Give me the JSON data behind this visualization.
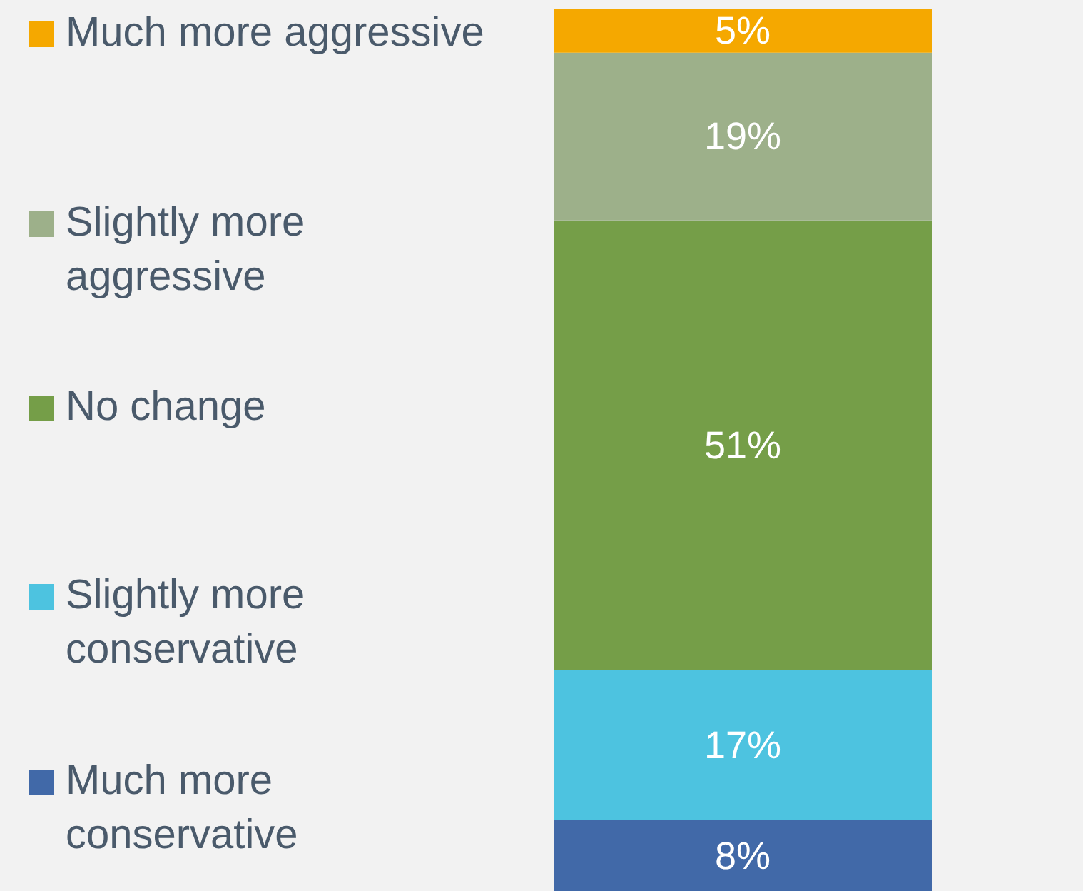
{
  "chart_data": {
    "type": "bar",
    "stacked": true,
    "categories": [
      null
    ],
    "ylim": [
      0,
      100
    ],
    "tick_labels": false,
    "legend": "left",
    "grid": false,
    "series": [
      {
        "name": "Much more conservative",
        "color": "#4169a8",
        "values": [
          8
        ],
        "value_labels": [
          "8%"
        ]
      },
      {
        "name": "Slightly more conservative",
        "color": "#4dc3e0",
        "values": [
          17
        ],
        "value_labels": [
          "17%"
        ]
      },
      {
        "name": "No change",
        "color": "#759e48",
        "values": [
          51
        ],
        "value_labels": [
          "51%"
        ]
      },
      {
        "name": "Slightly more aggressive",
        "color": "#9db08a",
        "values": [
          19
        ],
        "value_labels": [
          "19%"
        ]
      },
      {
        "name": "Much more aggressive",
        "color": "#f5a800",
        "values": [
          5
        ],
        "value_labels": [
          "5%"
        ]
      }
    ]
  }
}
